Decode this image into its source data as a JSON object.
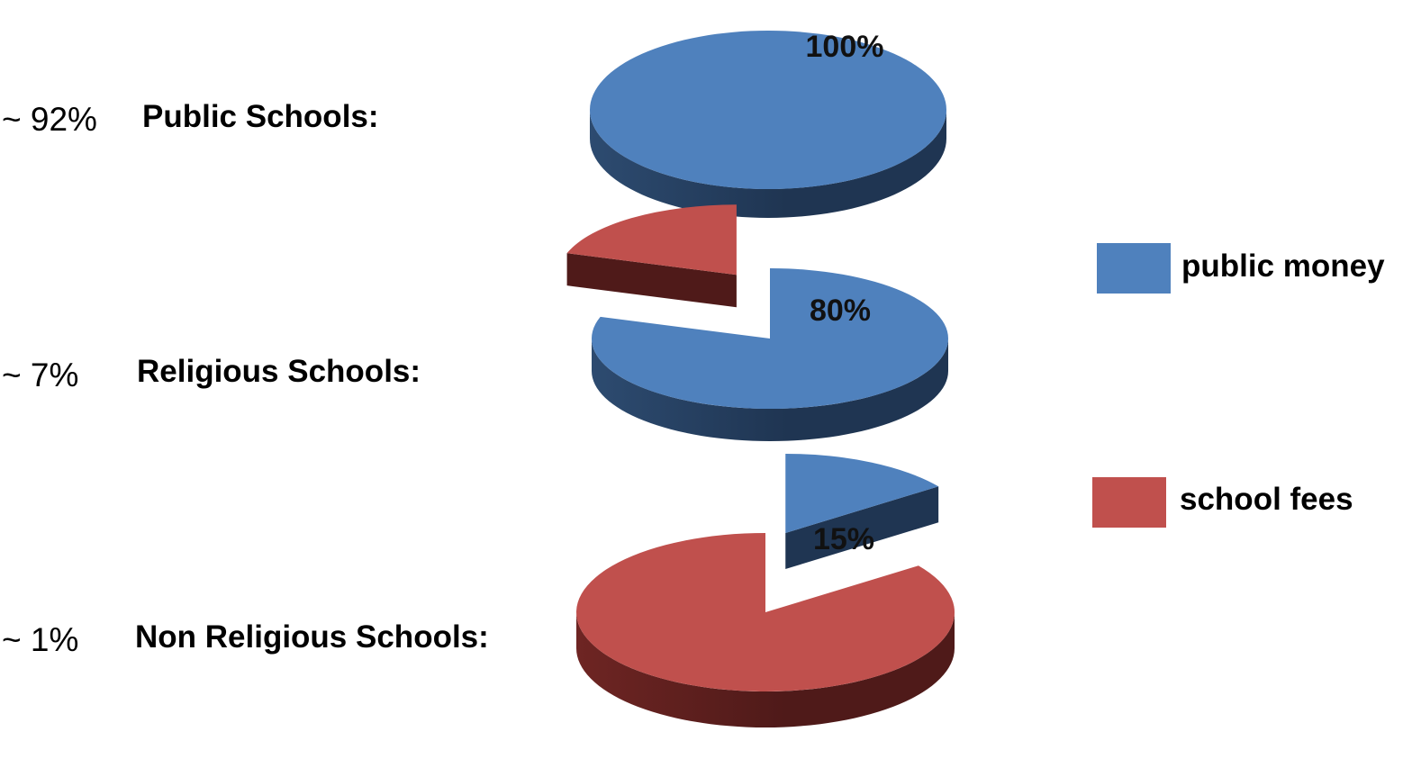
{
  "chart_data": [
    {
      "type": "pie",
      "row_share": "~ 92%",
      "title": "Public Schools:",
      "slices": [
        {
          "label": "public money",
          "value": 100,
          "data_label": "100%"
        }
      ]
    },
    {
      "type": "pie",
      "row_share": "~ 7%",
      "title": "Religious Schools:",
      "slices": [
        {
          "label": "public money",
          "value": 80,
          "data_label": "80%"
        },
        {
          "label": "school fees",
          "value": 20,
          "data_label": ""
        }
      ]
    },
    {
      "type": "pie",
      "row_share": "~ 1%",
      "title": "Non Religious Schools:",
      "slices": [
        {
          "label": "public money",
          "value": 15,
          "data_label": "15%"
        },
        {
          "label": "school fees",
          "value": 85,
          "data_label": ""
        }
      ]
    }
  ],
  "legend": {
    "position": "right",
    "items": [
      {
        "label": "public money",
        "color": "#4f81bd"
      },
      {
        "label": "school fees",
        "color": "#c0504d"
      }
    ]
  },
  "colors": {
    "public money": {
      "top": "#4f81bd",
      "side": "#2d4b70",
      "side_dark": "#1f3552"
    },
    "school fees": {
      "top": "#c0504d",
      "side": "#6e2523",
      "side_dark": "#4f1a19"
    }
  }
}
